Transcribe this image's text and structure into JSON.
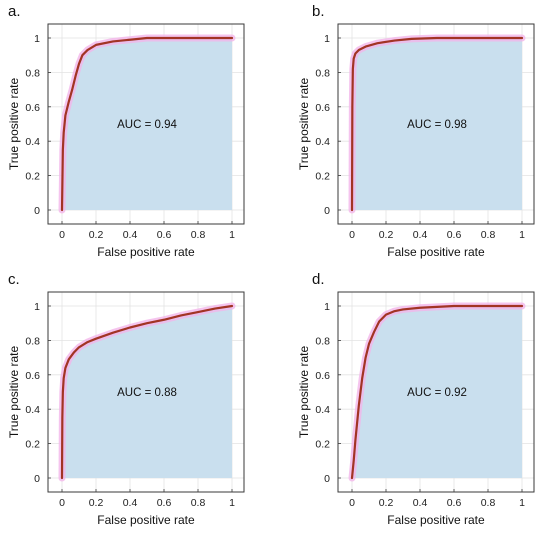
{
  "chart_data": [
    {
      "type": "area",
      "panel": "a.",
      "xlabel": "False positive rate",
      "ylabel": "True positive rate",
      "xlim": [
        0,
        1
      ],
      "ylim": [
        0,
        1
      ],
      "xticks": [
        "0",
        "0.2",
        "0.4",
        "0.6",
        "0.8",
        "1"
      ],
      "yticks": [
        "0",
        "0.2",
        "0.4",
        "0.6",
        "0.8",
        "1"
      ],
      "annotation": "AUC = 0.94",
      "grid": true,
      "x": [
        0,
        0.005,
        0.01,
        0.02,
        0.04,
        0.06,
        0.08,
        0.1,
        0.12,
        0.15,
        0.2,
        0.3,
        0.4,
        0.5,
        0.6,
        0.8,
        1
      ],
      "y": [
        0,
        0.35,
        0.45,
        0.55,
        0.63,
        0.7,
        0.78,
        0.85,
        0.9,
        0.93,
        0.96,
        0.98,
        0.99,
        1.0,
        1.0,
        1.0,
        1.0
      ]
    },
    {
      "type": "area",
      "panel": "b.",
      "xlabel": "False positive rate",
      "ylabel": "True positive rate",
      "xlim": [
        0,
        1
      ],
      "ylim": [
        0,
        1
      ],
      "xticks": [
        "0",
        "0.2",
        "0.4",
        "0.6",
        "0.8",
        "1"
      ],
      "yticks": [
        "0",
        "0.2",
        "0.4",
        "0.6",
        "0.8",
        "1"
      ],
      "annotation": "AUC = 0.98",
      "grid": true,
      "x": [
        0,
        0.002,
        0.005,
        0.01,
        0.02,
        0.04,
        0.08,
        0.15,
        0.25,
        0.35,
        0.5,
        0.6,
        0.8,
        1
      ],
      "y": [
        0,
        0.6,
        0.82,
        0.88,
        0.91,
        0.93,
        0.95,
        0.97,
        0.985,
        0.995,
        1.0,
        1.0,
        1.0,
        1.0
      ]
    },
    {
      "type": "area",
      "panel": "c.",
      "xlabel": "False positive rate",
      "ylabel": "True positive rate",
      "xlim": [
        0,
        1
      ],
      "ylim": [
        0,
        1
      ],
      "xticks": [
        "0",
        "0.2",
        "0.4",
        "0.6",
        "0.8",
        "1"
      ],
      "yticks": [
        "0",
        "0.2",
        "0.4",
        "0.6",
        "0.8",
        "1"
      ],
      "annotation": "AUC = 0.88",
      "grid": true,
      "x": [
        0,
        0.002,
        0.005,
        0.01,
        0.02,
        0.04,
        0.07,
        0.1,
        0.15,
        0.2,
        0.3,
        0.4,
        0.5,
        0.6,
        0.7,
        0.8,
        0.9,
        1
      ],
      "y": [
        0,
        0.35,
        0.5,
        0.58,
        0.64,
        0.69,
        0.73,
        0.76,
        0.79,
        0.81,
        0.845,
        0.875,
        0.9,
        0.92,
        0.945,
        0.965,
        0.985,
        1.0
      ]
    },
    {
      "type": "area",
      "panel": "d.",
      "xlabel": "False positive rate",
      "ylabel": "True positive rate",
      "xlim": [
        0,
        1
      ],
      "ylim": [
        0,
        1
      ],
      "xticks": [
        "0",
        "0.2",
        "0.4",
        "0.6",
        "0.8",
        "1"
      ],
      "yticks": [
        "0",
        "0.2",
        "0.4",
        "0.6",
        "0.8",
        "1"
      ],
      "annotation": "AUC = 0.92",
      "grid": true,
      "x": [
        0,
        0.01,
        0.02,
        0.04,
        0.06,
        0.08,
        0.1,
        0.13,
        0.16,
        0.2,
        0.25,
        0.3,
        0.4,
        0.5,
        0.6,
        0.7,
        0.8,
        1
      ],
      "y": [
        0,
        0.1,
        0.22,
        0.42,
        0.58,
        0.7,
        0.78,
        0.85,
        0.91,
        0.95,
        0.97,
        0.98,
        0.99,
        0.995,
        1.0,
        1.0,
        1.0,
        1.0
      ]
    }
  ],
  "colors": {
    "fill": "#c9dfee",
    "curve": "#a23424",
    "halo": "#f3b5ea",
    "grid": "#e3e3e3",
    "axes": "#3a3a3a"
  }
}
